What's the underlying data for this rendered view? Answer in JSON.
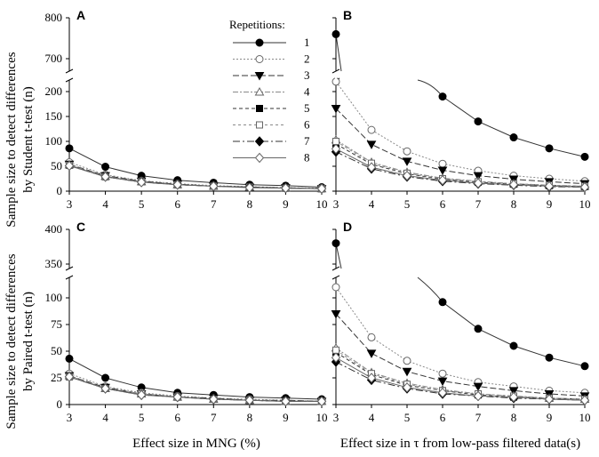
{
  "chart_data": [
    {
      "panel": "A",
      "type": "line",
      "ylabel_lines": [
        "Sample size to detect differences",
        "by Student t-test (n)"
      ],
      "xlabel": "",
      "x": [
        3,
        4,
        5,
        6,
        7,
        8,
        9,
        10
      ],
      "x_tick_labels": [
        "3",
        "4",
        "5",
        "6",
        "7",
        "8",
        "9",
        "10"
      ],
      "y_lower_range": [
        0,
        220
      ],
      "y_upper_range": [
        650,
        800
      ],
      "y_lower_ticks": [
        "0",
        "50",
        "100",
        "150",
        "200"
      ],
      "y_upper_ticks": [
        "700",
        "800"
      ],
      "series": [
        {
          "name": "1",
          "marker": "filled-circle",
          "values": [
            86,
            49,
            31,
            22,
            17,
            13,
            11,
            8
          ]
        },
        {
          "name": "2",
          "marker": "open-circle",
          "values": [
            58,
            33,
            21,
            15,
            11,
            9,
            7,
            6
          ]
        },
        {
          "name": "3",
          "marker": "filled-triangle",
          "values": [
            54,
            31,
            20,
            14,
            10,
            8,
            7,
            5
          ]
        },
        {
          "name": "4",
          "marker": "open-triangle",
          "values": [
            53,
            30,
            19,
            13,
            10,
            8,
            6,
            5
          ]
        },
        {
          "name": "5",
          "marker": "filled-square",
          "values": [
            52,
            29,
            19,
            13,
            10,
            8,
            6,
            5
          ]
        },
        {
          "name": "6",
          "marker": "open-square",
          "values": [
            52,
            29,
            19,
            13,
            10,
            8,
            6,
            5
          ]
        },
        {
          "name": "7",
          "marker": "filled-diamond",
          "values": [
            51,
            29,
            18,
            13,
            10,
            8,
            6,
            5
          ]
        },
        {
          "name": "8",
          "marker": "open-diamond",
          "values": [
            51,
            29,
            18,
            13,
            10,
            7,
            6,
            5
          ]
        }
      ]
    },
    {
      "panel": "B",
      "type": "line",
      "xlabel": "",
      "x": [
        3,
        4,
        5,
        6,
        7,
        8,
        9,
        10
      ],
      "x_tick_labels": [
        "3",
        "4",
        "5",
        "6",
        "7",
        "8",
        "9",
        "10"
      ],
      "y_lower_range": [
        0,
        220
      ],
      "y_upper_range": [
        650,
        800
      ],
      "series": [
        {
          "name": "1",
          "marker": "filled-circle",
          "values": [
            760,
            null,
            null,
            190,
            140,
            108,
            86,
            69
          ]
        },
        {
          "name": "2",
          "marker": "open-circle",
          "values": [
            220,
            123,
            80,
            55,
            41,
            31,
            25,
            20
          ]
        },
        {
          "name": "3",
          "marker": "filled-triangle",
          "values": [
            166,
            94,
            60,
            42,
            31,
            24,
            19,
            15
          ]
        },
        {
          "name": "4",
          "marker": "open-triangle",
          "values": [
            103,
            58,
            38,
            26,
            20,
            15,
            12,
            10
          ]
        },
        {
          "name": "5",
          "marker": "filled-square",
          "values": [
            95,
            54,
            35,
            24,
            18,
            14,
            11,
            9
          ]
        },
        {
          "name": "6",
          "marker": "open-square",
          "values": [
            100,
            56,
            36,
            25,
            19,
            15,
            12,
            10
          ]
        },
        {
          "name": "7",
          "marker": "filled-diamond",
          "values": [
            79,
            45,
            29,
            20,
            15,
            12,
            9,
            8
          ]
        },
        {
          "name": "8",
          "marker": "open-diamond",
          "values": [
            85,
            48,
            31,
            22,
            16,
            13,
            10,
            8
          ]
        }
      ]
    },
    {
      "panel": "C",
      "type": "line",
      "ylabel_lines": [
        "Sample size to detect differences",
        "by Paired t-test (n)"
      ],
      "xlabel": "Effect size in MNG (%)",
      "x": [
        3,
        4,
        5,
        6,
        7,
        8,
        9,
        10
      ],
      "x_tick_labels": [
        "3",
        "4",
        "5",
        "6",
        "7",
        "8",
        "9",
        "10"
      ],
      "y_lower_range": [
        0,
        125
      ],
      "y_upper_range": [
        325,
        400
      ],
      "y_lower_ticks": [
        "0",
        "25",
        "50",
        "75",
        "100"
      ],
      "y_upper_ticks": [
        "350",
        "400"
      ],
      "series": [
        {
          "name": "1",
          "marker": "filled-circle",
          "values": [
            43,
            25,
            16,
            11,
            9,
            7,
            6,
            5
          ]
        },
        {
          "name": "2",
          "marker": "open-circle",
          "values": [
            29,
            17,
            11,
            8,
            6,
            5,
            4,
            3
          ]
        },
        {
          "name": "3",
          "marker": "filled-triangle",
          "values": [
            27,
            16,
            10,
            7,
            6,
            4,
            4,
            3
          ]
        },
        {
          "name": "4",
          "marker": "open-triangle",
          "values": [
            27,
            15,
            10,
            7,
            5,
            4,
            3,
            3
          ]
        },
        {
          "name": "5",
          "marker": "filled-square",
          "values": [
            26,
            15,
            10,
            7,
            5,
            4,
            3,
            3
          ]
        },
        {
          "name": "6",
          "marker": "open-square",
          "values": [
            26,
            15,
            10,
            7,
            5,
            4,
            3,
            3
          ]
        },
        {
          "name": "7",
          "marker": "filled-diamond",
          "values": [
            26,
            15,
            9,
            7,
            5,
            4,
            3,
            3
          ]
        },
        {
          "name": "8",
          "marker": "open-diamond",
          "values": [
            26,
            15,
            9,
            7,
            5,
            4,
            3,
            3
          ]
        }
      ]
    },
    {
      "panel": "D",
      "type": "line",
      "xlabel": "Effect size in τ from low-pass filtered data(s)",
      "x": [
        3,
        4,
        5,
        6,
        7,
        8,
        9,
        10
      ],
      "x_tick_labels": [
        "3",
        "4",
        "5",
        "6",
        "7",
        "8",
        "9",
        "10"
      ],
      "y_lower_range": [
        0,
        125
      ],
      "y_upper_range": [
        325,
        400
      ],
      "series": [
        {
          "name": "1",
          "marker": "filled-circle",
          "values": [
            380,
            null,
            null,
            96,
            71,
            55,
            44,
            36
          ]
        },
        {
          "name": "2",
          "marker": "open-circle",
          "values": [
            110,
            63,
            41,
            29,
            21,
            17,
            13,
            11
          ]
        },
        {
          "name": "3",
          "marker": "filled-triangle",
          "values": [
            85,
            48,
            31,
            22,
            17,
            13,
            10,
            8
          ]
        },
        {
          "name": "4",
          "marker": "open-triangle",
          "values": [
            53,
            30,
            20,
            14,
            10,
            8,
            6,
            5
          ]
        },
        {
          "name": "5",
          "marker": "filled-square",
          "values": [
            49,
            28,
            18,
            13,
            9,
            7,
            6,
            5
          ]
        },
        {
          "name": "6",
          "marker": "open-square",
          "values": [
            51,
            29,
            19,
            13,
            10,
            8,
            6,
            5
          ]
        },
        {
          "name": "7",
          "marker": "filled-diamond",
          "values": [
            40,
            23,
            15,
            10,
            8,
            6,
            5,
            4
          ]
        },
        {
          "name": "8",
          "marker": "open-diamond",
          "values": [
            44,
            25,
            16,
            11,
            8,
            7,
            5,
            4
          ]
        }
      ]
    }
  ],
  "legend": {
    "title": "Repetitions:",
    "items": [
      "1",
      "2",
      "3",
      "4",
      "5",
      "6",
      "7",
      "8"
    ]
  },
  "styles": {
    "stroke_colors": [
      "#333333",
      "#8a8a8a",
      "#333333",
      "#8a8a8a",
      "#333333",
      "#8a8a8a",
      "#333333",
      "#666666"
    ],
    "dash": [
      "none",
      "2,2",
      "7,3",
      "6,2,2,2",
      "4,3",
      "3,3",
      "8,3,2,3",
      "none"
    ]
  }
}
